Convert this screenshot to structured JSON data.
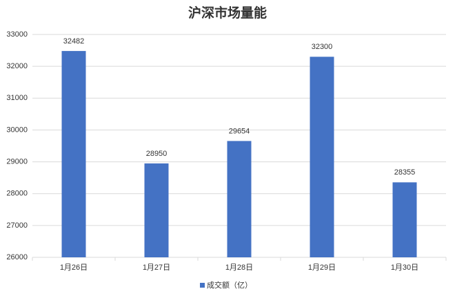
{
  "chart_data": {
    "type": "bar",
    "title": "沪深市场量能",
    "categories": [
      "1月26日",
      "1月27日",
      "1月28日",
      "1月29日",
      "1月30日"
    ],
    "series": [
      {
        "name": "成交额（亿）",
        "color": "#4472c4",
        "values": [
          32482,
          28950,
          29654,
          32300,
          28355
        ]
      }
    ],
    "ylim": [
      26000,
      33000
    ],
    "yticks": [
      26000,
      27000,
      28000,
      29000,
      30000,
      31000,
      32000,
      33000
    ],
    "grid": true
  }
}
